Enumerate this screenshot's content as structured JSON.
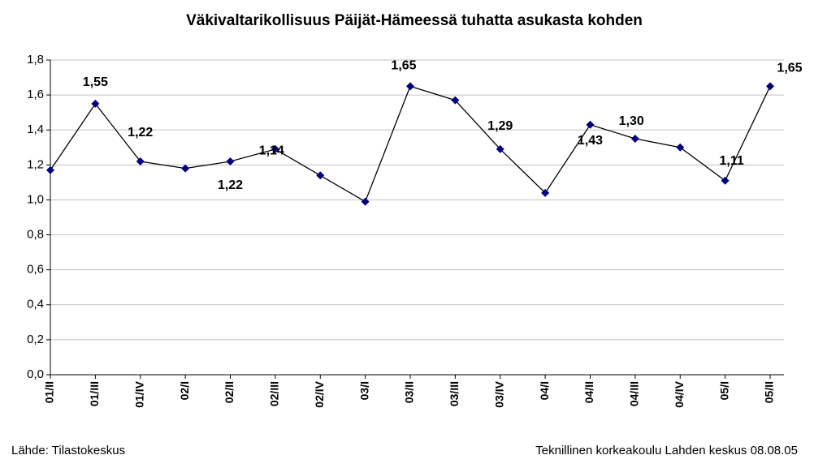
{
  "chart_data": {
    "type": "line",
    "title": "Väkivaltarikollisuus Päijät-Hämeessä tuhatta asukasta kohden",
    "categories": [
      "01/II",
      "01/III",
      "01/IV",
      "02/I",
      "02/II",
      "02/III",
      "02/IV",
      "03/I",
      "03/II",
      "03/III",
      "03/IV",
      "04/I",
      "04/II",
      "04/III",
      "04/IV",
      "05/I",
      "05/II"
    ],
    "values": [
      1.17,
      1.55,
      1.22,
      1.18,
      1.22,
      1.29,
      1.14,
      0.99,
      1.65,
      1.57,
      1.29,
      1.04,
      1.43,
      1.35,
      1.3,
      1.11,
      1.65
    ],
    "value_labels": [
      null,
      "1,55",
      "1,22",
      null,
      "1,22",
      null,
      "1,14",
      null,
      "1,65",
      null,
      "1,29",
      null,
      "1,43",
      null,
      "1,30",
      "1,11",
      "1,65"
    ],
    "color": "#000080",
    "ylim": [
      0,
      1.8
    ],
    "yticks": [
      {
        "value": 0,
        "label": "0,0"
      },
      {
        "value": 0.2,
        "label": "0,2"
      },
      {
        "value": 0.4,
        "label": "0,4"
      },
      {
        "value": 0.6,
        "label": "0,6"
      },
      {
        "value": 0.8,
        "label": "0,8"
      },
      {
        "value": 1.0,
        "label": "1,0"
      },
      {
        "value": 1.2,
        "label": "1,2"
      },
      {
        "value": 1.4,
        "label": "1,4"
      },
      {
        "value": 1.6,
        "label": "1,6"
      },
      {
        "value": 1.8,
        "label": "1,8"
      }
    ],
    "grid": true,
    "source": "Lähde: Tilastokeskus",
    "credit": "Teknillinen korkeakoulu Lahden keskus 08.08.05"
  }
}
